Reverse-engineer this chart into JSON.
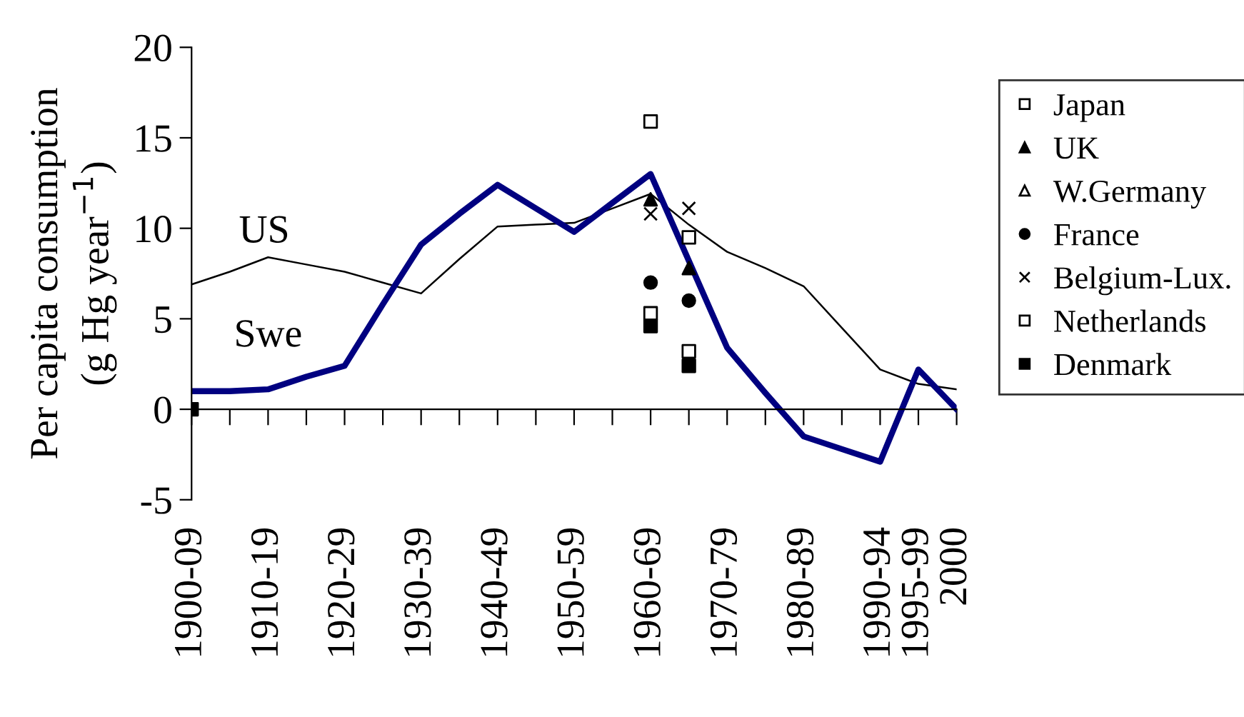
{
  "chart_data": {
    "type": "line",
    "ylabel": "Per capita consumption\n(g Hg year$^{−1}$)",
    "categories": [
      "1900-09",
      null,
      "1910-19",
      null,
      "1920-29",
      null,
      "1930-39",
      null,
      "1940-49",
      null,
      "1950-59",
      null,
      "1960-69",
      null,
      "1970-79",
      null,
      "1980-89",
      null,
      "1990-94",
      "1995-99",
      "2000"
    ],
    "ylim": [
      -5,
      20
    ],
    "yticks": [
      -5,
      0,
      5,
      10,
      15,
      20
    ],
    "legend": "right",
    "series": [
      {
        "color": "#000000",
        "values": [
          6.9,
          7.6,
          8.4,
          8.0,
          7.6,
          7.0,
          6.4,
          8.3,
          10.1,
          10.2,
          10.3,
          11.1,
          11.9,
          10.2,
          8.7,
          7.8,
          6.8,
          4.5,
          2.2,
          1.4,
          1.1
        ]
      },
      {
        "color": "#000080",
        "values": [
          1.0,
          1.0,
          1.1,
          1.8,
          2.4,
          5.8,
          9.1,
          10.8,
          12.4,
          11.1,
          9.8,
          11.4,
          13.0,
          8.2,
          3.4,
          0.9,
          -1.5,
          -2.2,
          -2.9,
          2.2,
          0
        ]
      },
      {
        "type": "scatter",
        "name": "Japan",
        "color": "#ffffff",
        "marker": "square",
        "values": [
          null,
          null,
          null,
          null,
          null,
          null,
          null,
          null,
          null,
          null,
          null,
          null,
          15.9,
          9.5,
          null,
          null,
          null,
          null,
          null,
          null,
          null
        ]
      },
      {
        "type": "scatter",
        "name": "UK",
        "color": "#000000",
        "marker": "triangle",
        "values": [
          null,
          null,
          null,
          null,
          null,
          null,
          null,
          null,
          null,
          null,
          null,
          null,
          11.6,
          7.8,
          null,
          null,
          null,
          null,
          null,
          null,
          null
        ]
      },
      {
        "type": "scatter",
        "name": "W.Germany",
        "color": "#ffffff",
        "marker": "triangle",
        "values": [
          null,
          null,
          null,
          null,
          null,
          null,
          null,
          null,
          null,
          null,
          null,
          null,
          null,
          null,
          null,
          null,
          null,
          null,
          null,
          null,
          null
        ]
      },
      {
        "type": "scatter",
        "name": "France",
        "color": "#000000",
        "marker": "circle",
        "values": [
          null,
          null,
          null,
          null,
          null,
          null,
          null,
          null,
          null,
          null,
          null,
          null,
          7.0,
          6.0,
          null,
          null,
          null,
          null,
          null,
          null,
          null
        ]
      },
      {
        "type": "scatter",
        "name": "Belgium-Lux.",
        "color": "#000000",
        "marker": "cross",
        "values": [
          null,
          null,
          null,
          null,
          null,
          null,
          null,
          null,
          null,
          null,
          null,
          null,
          10.8,
          11.1,
          null,
          null,
          null,
          null,
          null,
          null,
          null
        ]
      },
      {
        "type": "scatter",
        "name": "Netherlands",
        "color": "#ffffff",
        "marker": "square",
        "values": [
          null,
          null,
          null,
          null,
          null,
          null,
          null,
          null,
          null,
          null,
          null,
          null,
          5.3,
          3.2,
          null,
          null,
          null,
          null,
          null,
          null,
          null
        ]
      },
      {
        "type": "scatter",
        "name": "Denmark",
        "color": "#000000",
        "marker": "square",
        "values": [
          0,
          null,
          null,
          null,
          null,
          null,
          null,
          null,
          null,
          null,
          null,
          null,
          4.6,
          2.4,
          null,
          null,
          null,
          null,
          null,
          null,
          null
        ]
      }
    ],
    "annotations": [
      "US",
      "Swe"
    ]
  }
}
